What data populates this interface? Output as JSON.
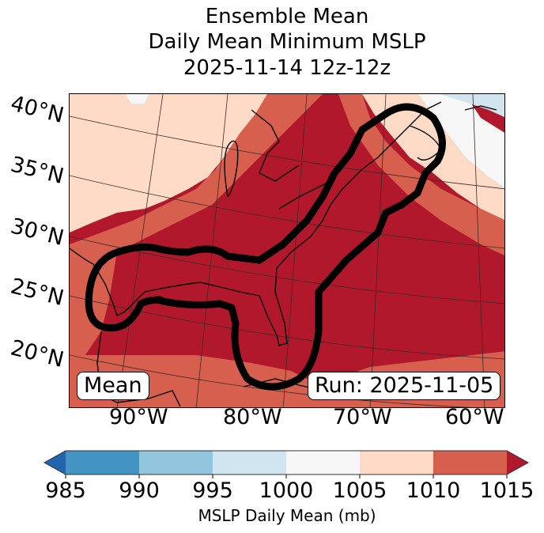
{
  "title": {
    "line1": "Ensemble Mean",
    "line2": "Daily Mean Minimum MSLP",
    "line3": "2025-11-14 12z-12z"
  },
  "map": {
    "lat_labels": [
      "40°N",
      "35°N",
      "30°N",
      "25°N",
      "20°N"
    ],
    "lon_labels": [
      "90°W",
      "80°W",
      "70°W",
      "60°W"
    ],
    "region": "Eastern United States / Gulf of Mexico / Western Atlantic",
    "left_box_label": "Mean",
    "right_box_label": "Run: 2025-11-05",
    "contour": "thick black outline enclosing Gulf of Mexico and US East Coast to Nova Scotia"
  },
  "colorbar": {
    "label": "MSLP Daily Mean (mb)",
    "ticks": [
      "985",
      "990",
      "995",
      "1000",
      "1005",
      "1010",
      "1015"
    ],
    "bins": [
      {
        "range": "<985",
        "color": "#2166ac"
      },
      {
        "range": "985-990",
        "color": "#4393c3"
      },
      {
        "range": "990-995",
        "color": "#92c5de"
      },
      {
        "range": "995-1000",
        "color": "#d1e5f0"
      },
      {
        "range": "1000-1005",
        "color": "#f7f7f7"
      },
      {
        "range": "1005-1010",
        "color": "#fddbc7"
      },
      {
        "range": "1010-1015",
        "color": "#d6604d"
      },
      {
        "range": ">1015",
        "color": "#b2182b"
      }
    ],
    "extend": "both"
  },
  "chart_data": {
    "type": "heatmap",
    "title": "Ensemble Mean Daily Mean Minimum MSLP 2025-11-14 12z-12z",
    "colorbar_label": "MSLP Daily Mean (mb)",
    "levels": [
      985,
      990,
      995,
      1000,
      1005,
      1010,
      1015
    ],
    "lat_ticks": [
      40,
      35,
      30,
      25,
      20
    ],
    "lon_ticks": [
      -90,
      -80,
      -70,
      -60
    ],
    "regions": [
      {
        "area": "Gulf of Mexico, Southeast US, Great Lakes, western Atlantic",
        "value_range": ">1015"
      },
      {
        "area": "Central Plains band / Caribbean edge / mid-Atlantic offshore band",
        "value_range": "1010-1015"
      },
      {
        "area": "Northwest corner (Plains) and Maine / Gulf of Maine",
        "value_range": "1005-1010"
      },
      {
        "area": "Nova Scotia / far NE corner",
        "value_range": "1000-1005"
      },
      {
        "area": "Extreme NE corner (Gulf of St. Lawrence)",
        "value_range": "995-1000"
      }
    ],
    "annotations": [
      "Mean",
      "Run: 2025-11-05"
    ]
  }
}
